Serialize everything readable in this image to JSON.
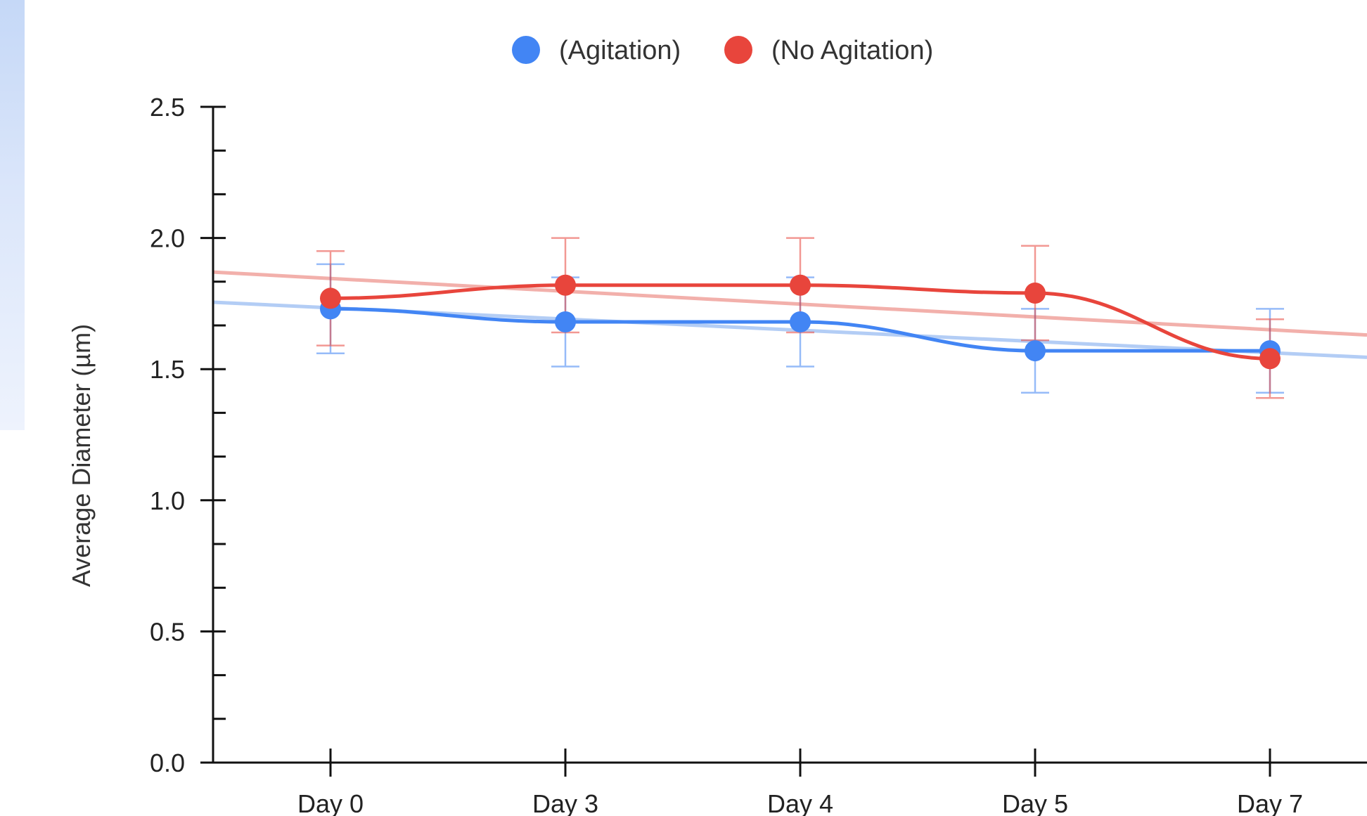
{
  "chart_data": {
    "type": "line",
    "title": "",
    "xlabel": "",
    "ylabel": "Average Diameter (µm)",
    "categories": [
      "Day 0",
      "Day 3",
      "Day 4",
      "Day 5",
      "Day 7"
    ],
    "ylim": [
      0,
      2.5
    ],
    "yticks": [
      "0.0",
      "0.5",
      "1.0",
      "1.5",
      "2.0",
      "2.5"
    ],
    "legend_position": "top-center",
    "grid": false,
    "series": [
      {
        "name": "(Agitation)",
        "color": "#4285f4",
        "trend_color": "#b3cdf5",
        "values": [
          1.73,
          1.68,
          1.68,
          1.57,
          1.57
        ],
        "error": [
          0.17,
          0.17,
          0.17,
          0.16,
          0.16
        ],
        "trendline": {
          "start": 1.755,
          "end": 1.545
        }
      },
      {
        "name": "(No Agitation)",
        "color": "#e8453c",
        "trend_color": "#f2b0ab",
        "values": [
          1.77,
          1.82,
          1.82,
          1.79,
          1.54
        ],
        "error": [
          0.18,
          0.18,
          0.18,
          0.18,
          0.15
        ],
        "trendline": {
          "start": 1.87,
          "end": 1.63
        }
      }
    ]
  }
}
